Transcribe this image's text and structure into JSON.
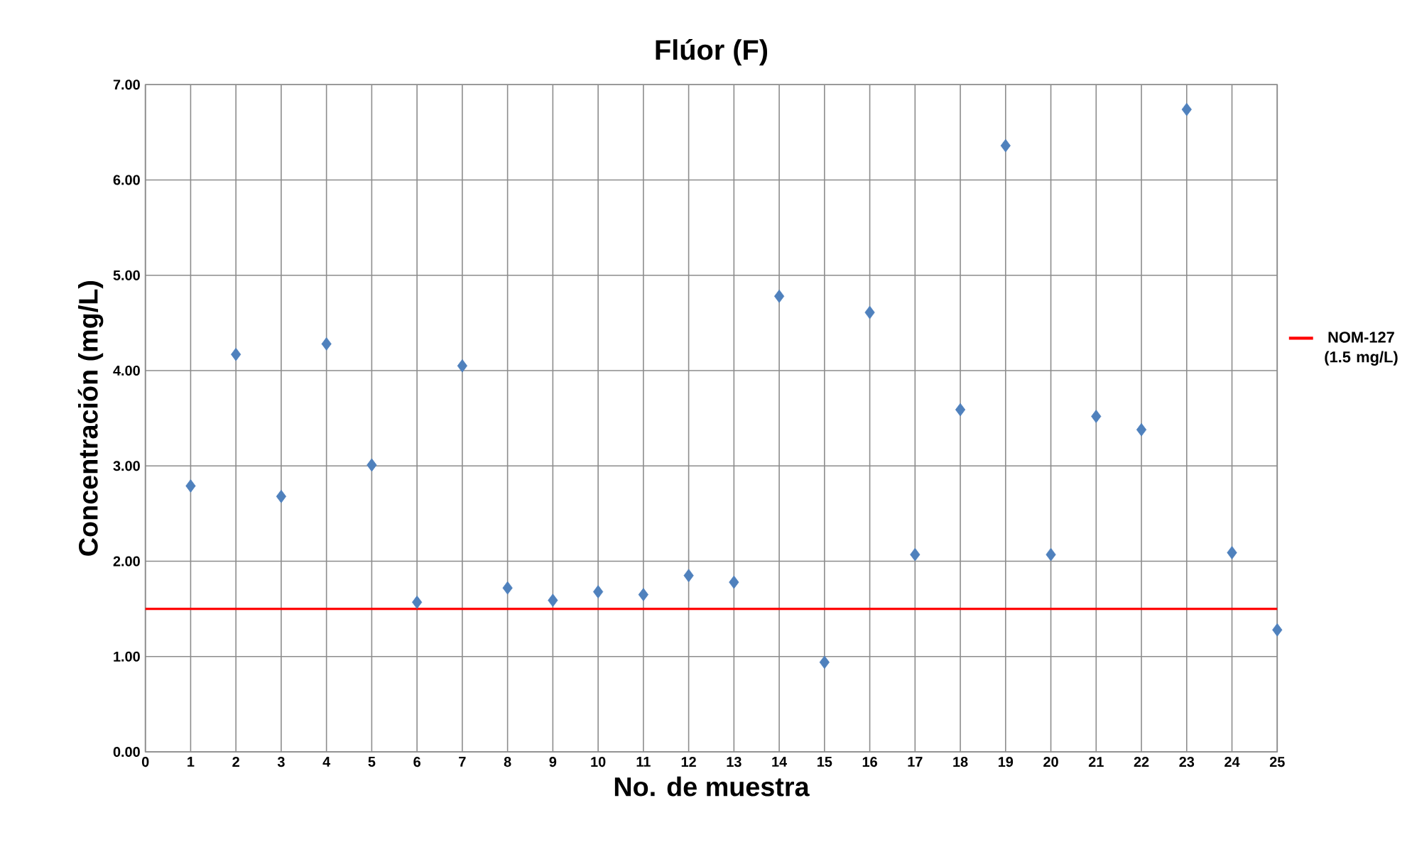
{
  "chart_data": {
    "type": "scatter",
    "title": "Flúor (F)",
    "xlabel": "No. de muestra",
    "ylabel": "Concentración (mg/L)",
    "x": [
      1,
      2,
      3,
      4,
      5,
      6,
      7,
      8,
      9,
      10,
      11,
      12,
      13,
      14,
      15,
      16,
      17,
      18,
      19,
      20,
      21,
      22,
      23,
      24,
      25
    ],
    "series": [
      {
        "color": "#4f81bd",
        "values": [
          2.79,
          4.17,
          2.68,
          4.28,
          3.01,
          1.57,
          4.05,
          1.72,
          1.59,
          1.68,
          1.65,
          1.85,
          1.78,
          4.78,
          0.94,
          4.61,
          2.07,
          3.59,
          6.36,
          2.07,
          3.52,
          3.38,
          6.74,
          2.09,
          1.28
        ]
      }
    ],
    "marker": "diamond",
    "grid": true,
    "xlim": [
      0,
      25
    ],
    "xticks": [
      0,
      1,
      2,
      3,
      4,
      5,
      6,
      7,
      8,
      9,
      10,
      11,
      12,
      13,
      14,
      15,
      16,
      17,
      18,
      19,
      20,
      21,
      22,
      23,
      24,
      25
    ],
    "ylim": [
      0,
      7
    ],
    "yticks": [
      {
        "value": 0,
        "label": "0.00"
      },
      {
        "value": 1,
        "label": "1.00"
      },
      {
        "value": 2,
        "label": "2.00"
      },
      {
        "value": 3,
        "label": "3.00"
      },
      {
        "value": 4,
        "label": "4.00"
      },
      {
        "value": 5,
        "label": "5.00"
      },
      {
        "value": 6,
        "label": "6.00"
      },
      {
        "value": 7,
        "label": "7.00"
      }
    ],
    "ref_lines": [
      {
        "axis": "y",
        "value": 1.5,
        "label": "NOM-127 (1.5 mg/L)",
        "color": "#ff0000"
      }
    ]
  }
}
